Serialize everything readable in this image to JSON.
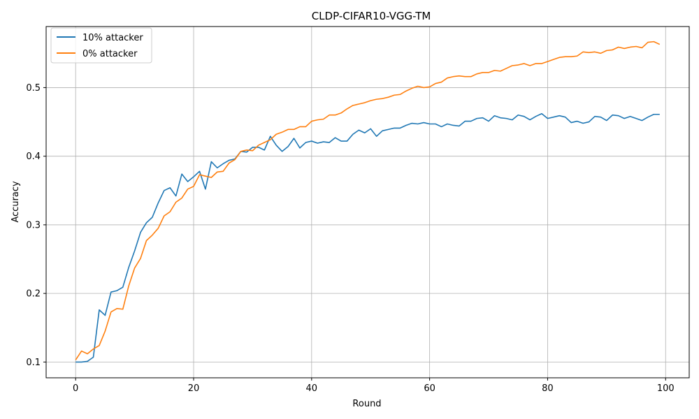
{
  "chart_data": {
    "type": "line",
    "title": "CLDP-CIFAR10-VGG-TM",
    "xlabel": "Round",
    "ylabel": "Accuracy",
    "xlim": [
      -5,
      104
    ],
    "ylim": [
      0.077,
      0.589
    ],
    "xticks": [
      0,
      20,
      40,
      60,
      80,
      100
    ],
    "yticks": [
      0.1,
      0.2,
      0.3,
      0.4,
      0.5
    ],
    "xtick_labels": [
      "0",
      "20",
      "40",
      "60",
      "80",
      "100"
    ],
    "ytick_labels": [
      "0.1",
      "0.2",
      "0.3",
      "0.4",
      "0.5"
    ],
    "grid": true,
    "legend_position": "top-left",
    "series": [
      {
        "name": "10% attacker",
        "color": "#1f77b4",
        "x": [
          0,
          1,
          2,
          3,
          4,
          5,
          6,
          7,
          8,
          9,
          10,
          11,
          12,
          13,
          14,
          15,
          16,
          17,
          18,
          19,
          20,
          21,
          22,
          23,
          24,
          25,
          26,
          27,
          28,
          29,
          30,
          31,
          32,
          33,
          34,
          35,
          36,
          37,
          38,
          39,
          40,
          41,
          42,
          43,
          44,
          45,
          46,
          47,
          48,
          49,
          50,
          51,
          52,
          53,
          54,
          55,
          56,
          57,
          58,
          59,
          60,
          61,
          62,
          63,
          64,
          65,
          66,
          67,
          68,
          69,
          70,
          71,
          72,
          73,
          74,
          75,
          76,
          77,
          78,
          79,
          80,
          81,
          82,
          83,
          84,
          85,
          86,
          87,
          88,
          89,
          90,
          91,
          92,
          93,
          94,
          95,
          96,
          97,
          98,
          99
        ],
        "y": [
          0.1,
          0.1,
          0.101,
          0.107,
          0.176,
          0.168,
          0.202,
          0.204,
          0.209,
          0.238,
          0.262,
          0.289,
          0.303,
          0.311,
          0.332,
          0.35,
          0.354,
          0.342,
          0.374,
          0.363,
          0.37,
          0.378,
          0.352,
          0.392,
          0.383,
          0.389,
          0.394,
          0.396,
          0.407,
          0.406,
          0.413,
          0.413,
          0.409,
          0.429,
          0.416,
          0.407,
          0.414,
          0.426,
          0.412,
          0.42,
          0.422,
          0.419,
          0.421,
          0.42,
          0.427,
          0.422,
          0.422,
          0.432,
          0.438,
          0.434,
          0.44,
          0.429,
          0.437,
          0.439,
          0.441,
          0.441,
          0.445,
          0.448,
          0.447,
          0.449,
          0.447,
          0.447,
          0.443,
          0.447,
          0.445,
          0.444,
          0.451,
          0.451,
          0.455,
          0.456,
          0.451,
          0.459,
          0.456,
          0.455,
          0.453,
          0.46,
          0.458,
          0.453,
          0.458,
          0.462,
          0.455,
          0.457,
          0.459,
          0.457,
          0.449,
          0.451,
          0.448,
          0.45,
          0.458,
          0.457,
          0.452,
          0.46,
          0.459,
          0.455,
          0.458,
          0.455,
          0.452,
          0.457,
          0.461,
          0.461
        ]
      },
      {
        "name": "0% attacker",
        "color": "#ff7f0e",
        "x": [
          0,
          1,
          2,
          3,
          4,
          5,
          6,
          7,
          8,
          9,
          10,
          11,
          12,
          13,
          14,
          15,
          16,
          17,
          18,
          19,
          20,
          21,
          22,
          23,
          24,
          25,
          26,
          27,
          28,
          29,
          30,
          31,
          32,
          33,
          34,
          35,
          36,
          37,
          38,
          39,
          40,
          41,
          42,
          43,
          44,
          45,
          46,
          47,
          48,
          49,
          50,
          51,
          52,
          53,
          54,
          55,
          56,
          57,
          58,
          59,
          60,
          61,
          62,
          63,
          64,
          65,
          66,
          67,
          68,
          69,
          70,
          71,
          72,
          73,
          74,
          75,
          76,
          77,
          78,
          79,
          80,
          81,
          82,
          83,
          84,
          85,
          86,
          87,
          88,
          89,
          90,
          91,
          92,
          93,
          94,
          95,
          96,
          97,
          98,
          99
        ],
        "y": [
          0.103,
          0.116,
          0.112,
          0.119,
          0.124,
          0.145,
          0.173,
          0.178,
          0.177,
          0.211,
          0.237,
          0.251,
          0.277,
          0.285,
          0.295,
          0.313,
          0.319,
          0.333,
          0.339,
          0.352,
          0.356,
          0.373,
          0.371,
          0.369,
          0.377,
          0.378,
          0.39,
          0.395,
          0.407,
          0.409,
          0.408,
          0.416,
          0.42,
          0.424,
          0.432,
          0.435,
          0.439,
          0.439,
          0.443,
          0.443,
          0.451,
          0.453,
          0.454,
          0.46,
          0.46,
          0.463,
          0.469,
          0.474,
          0.476,
          0.478,
          0.481,
          0.483,
          0.484,
          0.486,
          0.489,
          0.49,
          0.495,
          0.499,
          0.502,
          0.5,
          0.501,
          0.506,
          0.508,
          0.514,
          0.516,
          0.517,
          0.516,
          0.516,
          0.52,
          0.522,
          0.522,
          0.525,
          0.524,
          0.528,
          0.532,
          0.533,
          0.535,
          0.532,
          0.535,
          0.535,
          0.538,
          0.541,
          0.544,
          0.545,
          0.545,
          0.546,
          0.552,
          0.551,
          0.552,
          0.55,
          0.554,
          0.555,
          0.559,
          0.557,
          0.559,
          0.56,
          0.558,
          0.566,
          0.567,
          0.563
        ]
      }
    ]
  }
}
